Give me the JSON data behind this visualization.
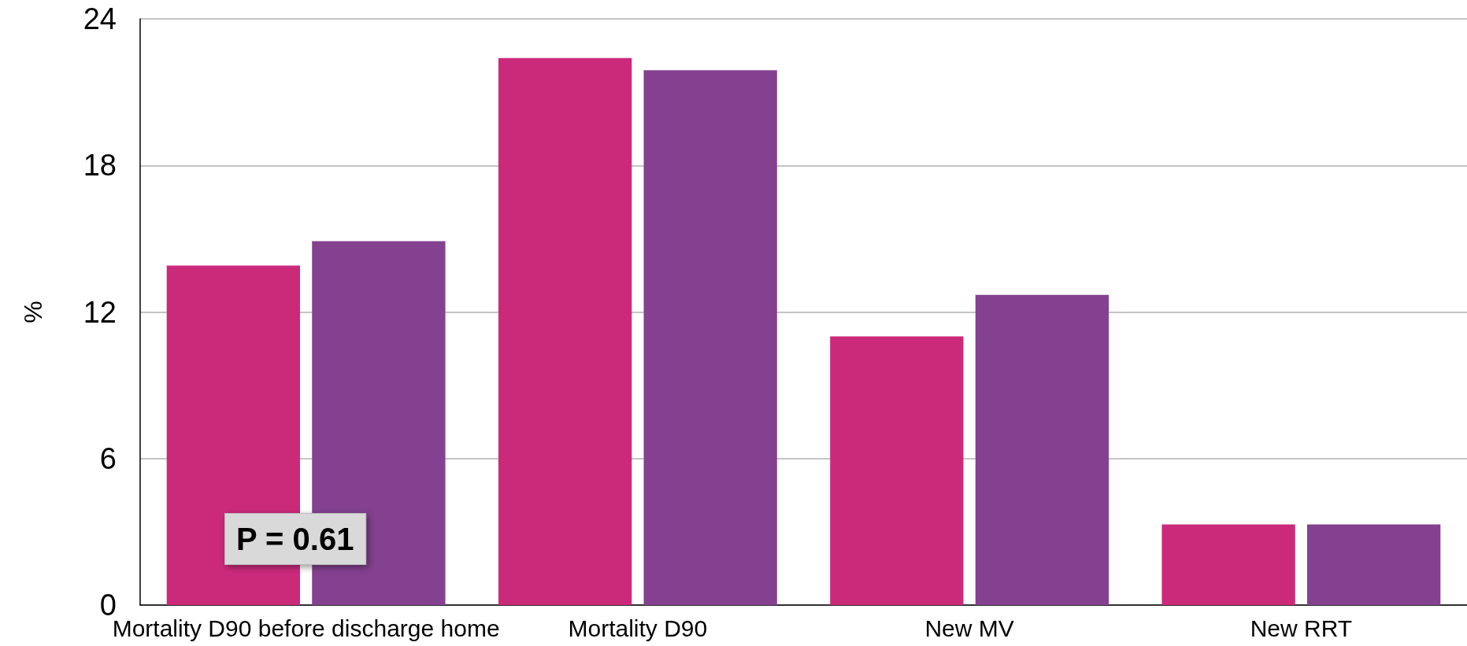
{
  "chart_data": {
    "type": "bar",
    "ylabel": "%",
    "categories": [
      "Mortality D90 before discharge home",
      "Mortality D90",
      "New MV",
      "New RRT"
    ],
    "series": [
      {
        "color": "#cb2a7b",
        "values": [
          13.9,
          22.4,
          11.0,
          3.3
        ]
      },
      {
        "color": "#83418f",
        "values": [
          14.9,
          21.9,
          12.7,
          3.3
        ]
      }
    ],
    "ylim": [
      0,
      24
    ],
    "yticks": [
      0,
      6,
      12,
      18,
      24
    ],
    "grid": "y",
    "annotations": [
      "P = 0.61"
    ]
  }
}
